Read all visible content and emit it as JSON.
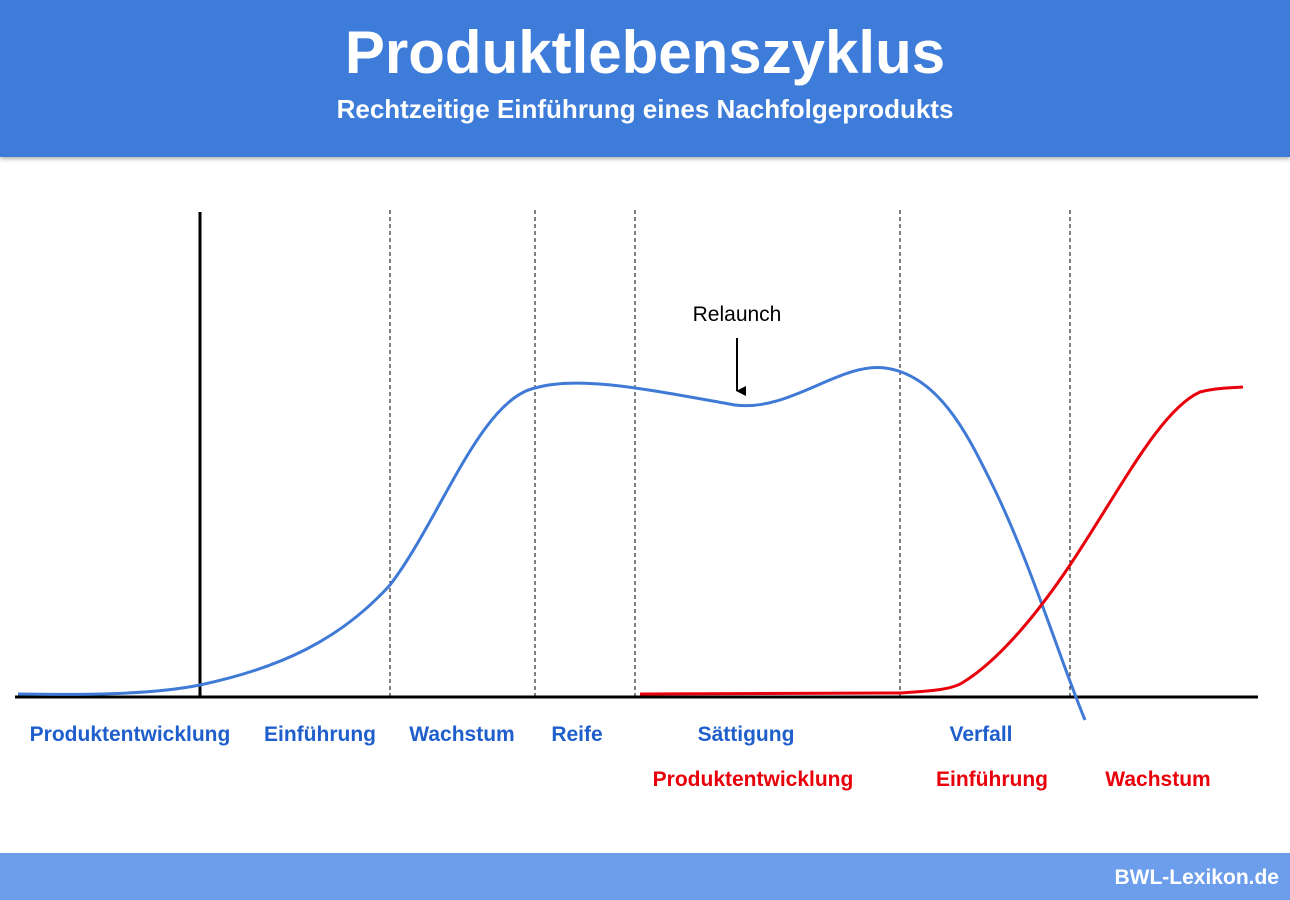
{
  "header": {
    "title": "Produktlebenszyklus",
    "subtitle": "Rechtzeitige Einführung eines Nachfolgeprodukts"
  },
  "diagram": {
    "annotation": "Relaunch",
    "phases_current": [
      "Produktentwicklung",
      "Einführung",
      "Wachstum",
      "Reife",
      "Sättigung",
      "Verfall"
    ],
    "phases_successor": [
      "Produktentwicklung",
      "Einführung",
      "Wachstum"
    ]
  },
  "footer": {
    "source": "BWL-Lexikon.de"
  }
}
